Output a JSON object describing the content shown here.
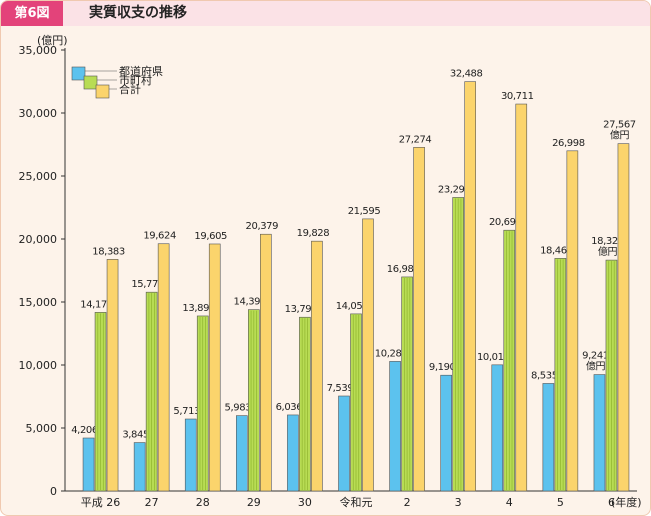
{
  "figure": {
    "label": "第6図",
    "title": "実質収支の推移"
  },
  "chart_data": {
    "type": "bar",
    "title": "実質収支の推移",
    "y_unit": "(億円)",
    "x_unit": "(年度)",
    "ylim": [
      0,
      35000
    ],
    "yticks": [
      "0",
      "5,000",
      "10,000",
      "15,000",
      "20,000",
      "25,000",
      "30,000",
      "35,000"
    ],
    "categories": [
      "平成 26",
      "27",
      "28",
      "29",
      "30",
      "令和元",
      "2",
      "3",
      "4",
      "5",
      "6"
    ],
    "series": [
      {
        "name": "都道府県",
        "color": "#5cc2ee",
        "values": [
          4206,
          3845,
          5713,
          5983,
          6036,
          7539,
          10285,
          9190,
          10013,
          8535,
          9241
        ],
        "labels": [
          "4,206",
          "3,845",
          "5,713",
          "5,983",
          "6,036",
          "7,539",
          "10,285",
          "9,190",
          "10,013",
          "8,535",
          "9,241"
        ]
      },
      {
        "name": "市町村",
        "color": "#b8dc54",
        "values": [
          14177,
          15779,
          13892,
          14396,
          13792,
          14056,
          16989,
          23298,
          20698,
          18463,
          18326
        ],
        "labels": [
          "14,177",
          "15,779",
          "13,892",
          "14,396",
          "13,792",
          "14,056",
          "16,989",
          "23,298",
          "20,698",
          "18,463",
          "18,326"
        ]
      },
      {
        "name": "合計",
        "color": "#fbd46c",
        "values": [
          18383,
          19624,
          19605,
          20379,
          19828,
          21595,
          27274,
          32488,
          30711,
          26998,
          27567
        ],
        "labels": [
          "18,383",
          "19,624",
          "19,605",
          "20,379",
          "19,828",
          "21,595",
          "27,274",
          "32,488",
          "30,711",
          "26,998",
          "27,567"
        ]
      }
    ],
    "unit_label": "億円"
  }
}
